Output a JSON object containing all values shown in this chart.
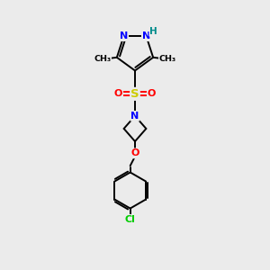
{
  "background_color": "#ebebeb",
  "bond_color": "#000000",
  "atom_colors": {
    "N": "#0000ff",
    "O": "#ff0000",
    "S": "#cccc00",
    "Cl": "#00cc00",
    "H": "#008b8b",
    "C": "#000000"
  },
  "figsize": [
    3.0,
    3.0
  ],
  "dpi": 100
}
